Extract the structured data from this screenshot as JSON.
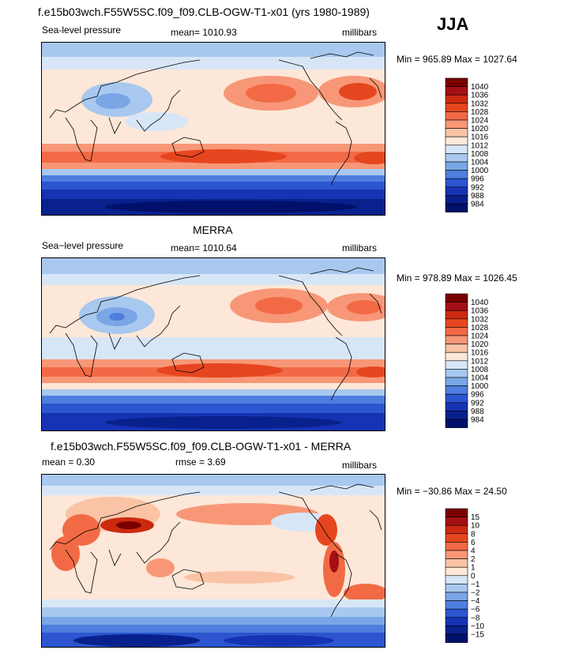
{
  "season": "JJA",
  "chart_data": [
    {
      "type": "heatmap",
      "title": "f.e15b03wch.F55W5SC.f09_f09.CLB-OGW-T1-x01 (yrs 1980-1989)",
      "subtitle_left": "Sea-level pressure",
      "subtitle_mid": "mean= 1010.93",
      "subtitle_right": "millibars",
      "minmax": "Min = 965.89 Max = 1027.64",
      "min": 965.89,
      "max": 1027.64,
      "mean": 1010.93,
      "units": "millibars",
      "colorbar": {
        "levels": [
          "1040",
          "1036",
          "1032",
          "1028",
          "1024",
          "1020",
          "1016",
          "1012",
          "1008",
          "1004",
          "1000",
          "996",
          "992",
          "988",
          "984"
        ],
        "colors": [
          "#7a0000",
          "#a50f15",
          "#cb2a10",
          "#e6461f",
          "#f26a45",
          "#f79777",
          "#fac3a6",
          "#fde7d8",
          "#d7e6f7",
          "#a8c8ef",
          "#7aa6e6",
          "#4e7ede",
          "#2c55cf",
          "#1533b3",
          "#08218c",
          "#00106b"
        ]
      }
    },
    {
      "type": "heatmap",
      "title": "MERRA",
      "subtitle_left": "Sea−level pressure",
      "subtitle_mid": "mean= 1010.64",
      "subtitle_right": "millibars",
      "minmax": "Min = 978.89 Max = 1026.45",
      "min": 978.89,
      "max": 1026.45,
      "mean": 1010.64,
      "units": "millibars",
      "colorbar": {
        "levels": [
          "1040",
          "1036",
          "1032",
          "1028",
          "1024",
          "1020",
          "1016",
          "1012",
          "1008",
          "1004",
          "1000",
          "996",
          "992",
          "988",
          "984"
        ],
        "colors": [
          "#7a0000",
          "#a50f15",
          "#cb2a10",
          "#e6461f",
          "#f26a45",
          "#f79777",
          "#fac3a6",
          "#fde7d8",
          "#d7e6f7",
          "#a8c8ef",
          "#7aa6e6",
          "#4e7ede",
          "#2c55cf",
          "#1533b3",
          "#08218c",
          "#00106b"
        ]
      }
    },
    {
      "type": "heatmap",
      "title": "f.e15b03wch.F55W5SC.f09_f09.CLB-OGW-T1-x01 - MERRA",
      "subtitle_left": "mean =    0.30",
      "subtitle_mid": "rmse =    3.69",
      "subtitle_right": "millibars",
      "minmax": "Min = −30.86 Max =  24.50",
      "min": -30.86,
      "max": 24.5,
      "mean": 0.3,
      "rmse": 3.69,
      "units": "millibars",
      "colorbar": {
        "levels": [
          "15",
          "10",
          "8",
          "6",
          "4",
          "2",
          "1",
          "0",
          "−1",
          "−2",
          "−4",
          "−6",
          "−8",
          "−10",
          "−15"
        ],
        "colors": [
          "#7a0000",
          "#a50f15",
          "#cb2a10",
          "#e6461f",
          "#f26a45",
          "#f79777",
          "#fac3a6",
          "#fde7d8",
          "#d7e6f7",
          "#a8c8ef",
          "#7aa6e6",
          "#4e7ede",
          "#2c55cf",
          "#1533b3",
          "#08218c",
          "#00106b"
        ]
      }
    }
  ]
}
